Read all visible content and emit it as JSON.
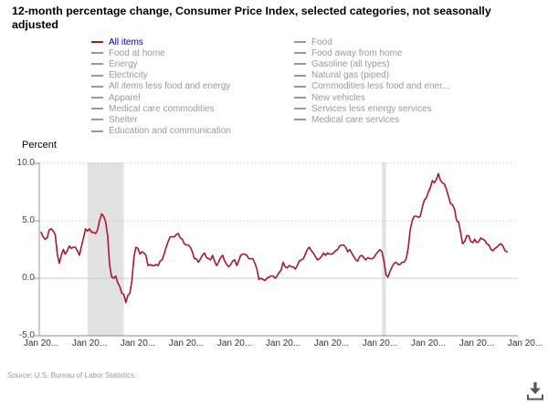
{
  "title": "12-month percentage change, Consumer Price Index, selected categories, not seasonally adjusted",
  "legend": {
    "active_item": "All items",
    "active_text_color": "#000099",
    "active_line_color": "#a6192e",
    "inactive_color": "#999999",
    "columns": [
      {
        "items": [
          {
            "label": "All items",
            "active": true
          },
          {
            "label": "Food at home",
            "active": false
          },
          {
            "label": "Energy",
            "active": false
          },
          {
            "label": "Electricity",
            "active": false
          },
          {
            "label": "All items less food and energy",
            "active": false
          },
          {
            "label": "Apparel",
            "active": false
          },
          {
            "label": "Medical care commodities",
            "active": false
          },
          {
            "label": "Shelter",
            "active": false
          },
          {
            "label": "Education and communication",
            "active": false
          }
        ]
      },
      {
        "items": [
          {
            "label": "Food",
            "active": false
          },
          {
            "label": "Food away from home",
            "active": false
          },
          {
            "label": "Gasoline (all types)",
            "active": false
          },
          {
            "label": "Natural gas (piped)",
            "active": false
          },
          {
            "label": "Commodities less food and ener...",
            "active": false
          },
          {
            "label": "New vehicles",
            "active": false
          },
          {
            "label": "Services less energy services",
            "active": false
          },
          {
            "label": "Medical care services",
            "active": false
          }
        ]
      }
    ]
  },
  "chart_data": {
    "type": "line",
    "title": "12-month percentage change, Consumer Price Index, selected categories, not seasonally adjusted",
    "ylabel": "Percent",
    "ylim": [
      -5.0,
      10.0
    ],
    "y_ticks": [
      {
        "label": "10.0",
        "value": 10
      },
      {
        "label": "5.0",
        "value": 5
      },
      {
        "label": "0.0",
        "value": 0
      },
      {
        "label": "-5.0",
        "value": -5
      }
    ],
    "x_tick_labels": [
      "Jan 20...",
      "Jan 20...",
      "Jan 20...",
      "Jan 20...",
      "Jan 20...",
      "Jan 20...",
      "Jan 20...",
      "Jan 20...",
      "Jan 20...",
      "Jan 20...",
      "Jan 20..."
    ],
    "x_tick_interval_months": 24,
    "x_start": "2006-01",
    "x_end": "2025-04",
    "frequency": "monthly",
    "grid": "horizontal, dotted at 5.0 and 10.0, solid at 0.0",
    "legend_position": "top, two columns",
    "recession_band_color": "#e2e2e2",
    "shaded_regions": [
      {
        "start": "2007-12",
        "end": "2009-06"
      },
      {
        "start": "2020-02",
        "end": "2020-04"
      }
    ],
    "series": [
      {
        "name": "All items",
        "color": "#a6192e",
        "values": [
          4.0,
          3.6,
          3.4,
          3.5,
          4.2,
          4.3,
          4.1,
          3.8,
          2.1,
          1.3,
          2.0,
          2.5,
          2.1,
          2.4,
          2.8,
          2.6,
          2.7,
          2.7,
          2.4,
          2.0,
          2.8,
          3.5,
          4.3,
          4.1,
          4.3,
          4.0,
          4.0,
          3.9,
          4.2,
          5.0,
          5.6,
          5.4,
          4.9,
          3.7,
          1.1,
          0.1,
          0.0,
          0.2,
          -0.4,
          -0.7,
          -1.3,
          -1.4,
          -2.1,
          -1.5,
          -1.3,
          -0.2,
          1.8,
          2.7,
          2.6,
          2.1,
          2.3,
          2.2,
          2.0,
          1.1,
          1.2,
          1.1,
          1.1,
          1.2,
          1.1,
          1.5,
          1.6,
          2.1,
          2.7,
          3.2,
          3.6,
          3.6,
          3.6,
          3.8,
          3.9,
          3.5,
          3.4,
          3.0,
          2.9,
          2.9,
          2.7,
          2.3,
          1.7,
          1.7,
          1.4,
          1.7,
          2.0,
          2.2,
          1.8,
          1.7,
          1.6,
          2.0,
          1.5,
          1.1,
          1.4,
          1.8,
          2.0,
          1.5,
          1.2,
          1.0,
          1.2,
          1.5,
          1.6,
          1.1,
          1.5,
          2.0,
          2.1,
          2.1,
          2.0,
          1.7,
          1.7,
          1.7,
          1.3,
          0.8,
          -0.1,
          0.0,
          -0.1,
          -0.2,
          0.0,
          0.1,
          0.2,
          0.2,
          0.0,
          0.2,
          0.5,
          0.7,
          1.4,
          1.0,
          0.9,
          1.1,
          1.0,
          1.0,
          0.8,
          1.1,
          1.5,
          1.6,
          1.7,
          2.1,
          2.5,
          2.7,
          2.4,
          2.2,
          1.9,
          1.6,
          1.7,
          1.9,
          2.2,
          2.0,
          2.2,
          2.1,
          2.1,
          2.2,
          2.4,
          2.5,
          2.8,
          2.9,
          2.9,
          2.7,
          2.3,
          2.5,
          2.2,
          1.9,
          1.6,
          1.5,
          1.9,
          2.0,
          1.8,
          1.6,
          1.8,
          1.7,
          1.7,
          1.8,
          2.1,
          2.3,
          2.5,
          2.3,
          1.5,
          0.3,
          0.1,
          0.6,
          1.0,
          1.3,
          1.4,
          1.2,
          1.2,
          1.4,
          1.4,
          1.7,
          2.6,
          4.2,
          5.0,
          5.4,
          5.4,
          5.3,
          5.4,
          6.2,
          6.8,
          7.0,
          7.5,
          7.9,
          8.5,
          8.3,
          8.6,
          9.1,
          8.5,
          8.3,
          8.2,
          7.7,
          7.1,
          6.5,
          6.4,
          6.0,
          5.0,
          4.9,
          4.0,
          3.0,
          3.2,
          3.7,
          3.7,
          3.2,
          3.1,
          3.4,
          3.1,
          3.2,
          3.5,
          3.4,
          3.3,
          3.0,
          2.9,
          2.5,
          2.4,
          2.6,
          2.7,
          2.9,
          3.0,
          2.8,
          2.4,
          2.3
        ]
      }
    ]
  },
  "footer": {
    "source": "Source: U.S. Bureau of Labor Statistics.",
    "download_icon": "download-icon",
    "download_color": "#555555"
  }
}
